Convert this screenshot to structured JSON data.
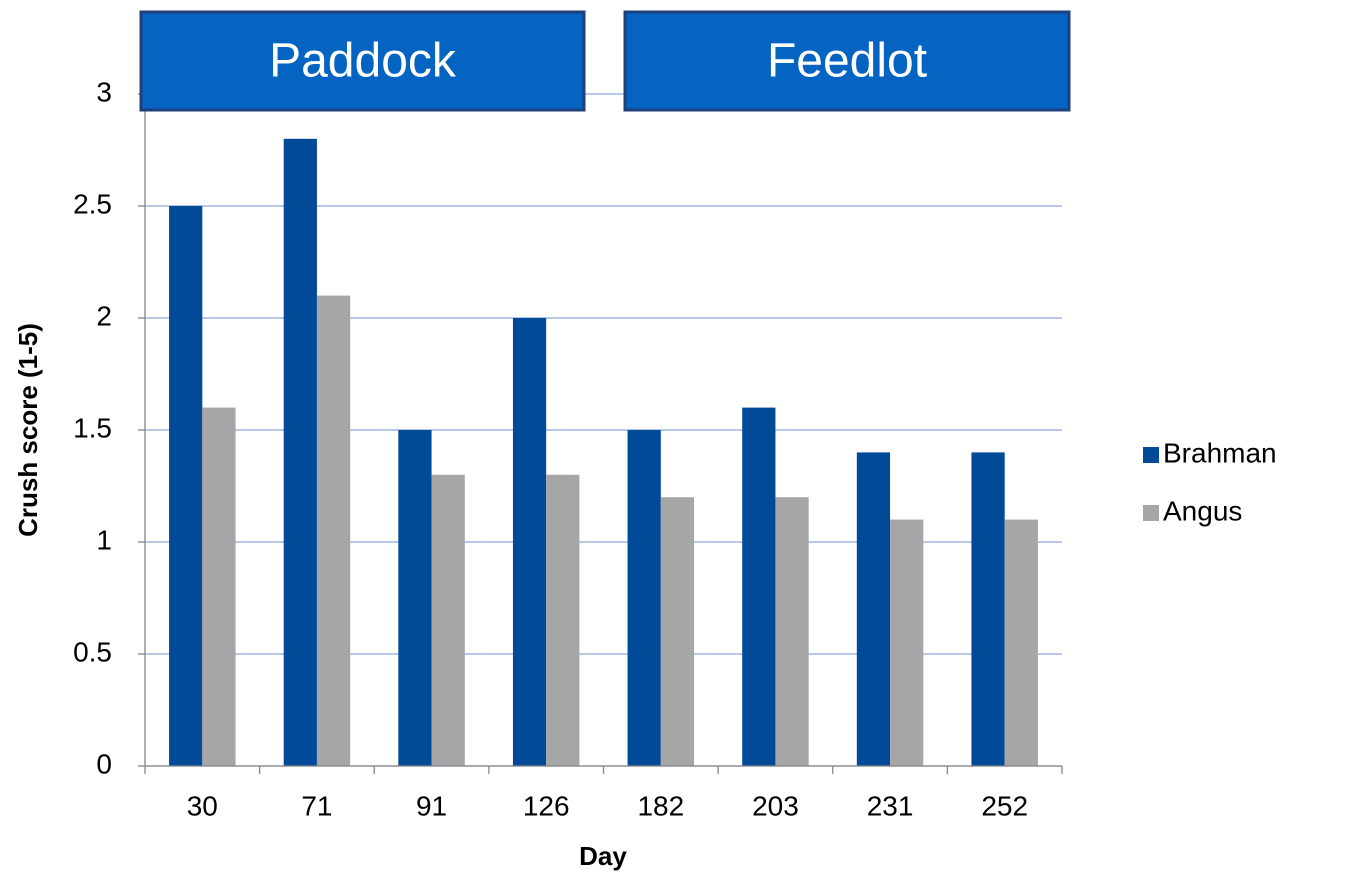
{
  "chart_data": {
    "type": "bar",
    "x_label": "Day",
    "y_label": "Crush score (1-5)",
    "categories": [
      "30",
      "71",
      "91",
      "126",
      "182",
      "203",
      "231",
      "252"
    ],
    "series": [
      {
        "name": "Brahman",
        "color": "#004a98",
        "values": [
          2.5,
          2.8,
          1.5,
          2.0,
          1.5,
          1.6,
          1.4,
          1.4
        ]
      },
      {
        "name": "Angus",
        "color": "#a6a6a6",
        "values": [
          1.6,
          2.1,
          1.3,
          1.3,
          1.2,
          1.2,
          1.1,
          1.1
        ]
      }
    ],
    "ylim": [
      0,
      3
    ],
    "yticks": [
      0,
      0.5,
      1,
      1.5,
      2,
      2.5,
      3
    ],
    "grid": true,
    "legend": "right",
    "annotations": [
      "Paddock",
      "Feedlot"
    ]
  }
}
